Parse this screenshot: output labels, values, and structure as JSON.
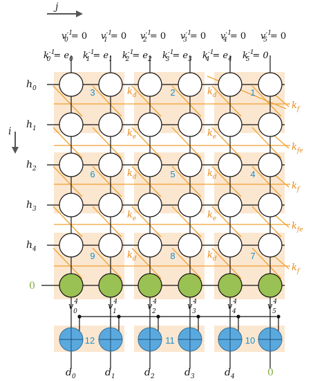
{
  "colors": {
    "background": "#ffffff",
    "block_fill": "#fbe6cf",
    "grid_line": "#111111",
    "diagonal_line": "#f0a030",
    "orange_label": "#e28a1e",
    "cell_number": "#1e8fc8",
    "green_node": "#9ac153",
    "blue_node": "#5aa9de",
    "green_label": "#7fae3e"
  },
  "axes": {
    "j": "j",
    "i": "i"
  },
  "top_labels": {
    "v": [
      {
        "base": "v",
        "sup": "-1",
        "sub": "0",
        "rhs": "= 0"
      },
      {
        "base": "v",
        "sup": "-1",
        "sub": "1",
        "rhs": "= 0"
      },
      {
        "base": "v",
        "sup": "-1",
        "sub": "2",
        "rhs": "= 0"
      },
      {
        "base": "v",
        "sup": "-1",
        "sub": "3",
        "rhs": "= 0"
      },
      {
        "base": "v",
        "sup": "-1",
        "sub": "4",
        "rhs": "= 0"
      },
      {
        "base": "v",
        "sup": "-1",
        "sub": "5",
        "rhs": "= 0"
      }
    ],
    "k": [
      {
        "base": "k",
        "sup": "-1",
        "sub": "0",
        "rhs_base": "= e",
        "rhs_sub": "0"
      },
      {
        "base": "k",
        "sup": "-1",
        "sub": "1",
        "rhs_base": "= e",
        "rhs_sub": "1"
      },
      {
        "base": "k",
        "sup": "-1",
        "sub": "2",
        "rhs_base": "= e",
        "rhs_sub": "2"
      },
      {
        "base": "k",
        "sup": "-1",
        "sub": "3",
        "rhs_base": "= e",
        "rhs_sub": "3"
      },
      {
        "base": "k",
        "sup": "-1",
        "sub": "4",
        "rhs_base": "= e",
        "rhs_sub": "4"
      },
      {
        "base": "k",
        "sup": "-1",
        "sub": "5",
        "rhs_base": "= 0",
        "rhs_sub": ""
      }
    ]
  },
  "row_labels": [
    {
      "base": "h",
      "sub": "0"
    },
    {
      "base": "h",
      "sub": "1"
    },
    {
      "base": "h",
      "sub": "2"
    },
    {
      "base": "h",
      "sub": "3"
    },
    {
      "base": "h",
      "sub": "4"
    }
  ],
  "green_row_label": "0",
  "cell_numbers": [
    "3",
    "2",
    "1",
    "6",
    "5",
    "4",
    "9",
    "8",
    "7",
    "12",
    "11",
    "10"
  ],
  "inner_labels": [
    {
      "base": "k",
      "sub": "d"
    },
    {
      "base": "k",
      "sub": "d"
    },
    {
      "base": "k",
      "sub": "e"
    },
    {
      "base": "k",
      "sub": "e"
    },
    {
      "base": "k",
      "sub": "d"
    },
    {
      "base": "k",
      "sub": "d"
    },
    {
      "base": "k",
      "sub": "e"
    },
    {
      "base": "k",
      "sub": "e"
    },
    {
      "base": "k",
      "sub": "d"
    },
    {
      "base": "k",
      "sub": "d"
    }
  ],
  "right_labels": [
    {
      "base": "k",
      "sub": "f"
    },
    {
      "base": "k",
      "sub": "fe"
    },
    {
      "base": "k",
      "sub": "f"
    },
    {
      "base": "k",
      "sub": "fe"
    },
    {
      "base": "k",
      "sub": "f"
    }
  ],
  "v_bottom_labels": [
    {
      "base": "v",
      "sup": "4",
      "sub": "0"
    },
    {
      "base": "v",
      "sup": "4",
      "sub": "1"
    },
    {
      "base": "v",
      "sup": "4",
      "sub": "2"
    },
    {
      "base": "v",
      "sup": "4",
      "sub": "3"
    },
    {
      "base": "v",
      "sup": "4",
      "sub": "4"
    },
    {
      "base": "v",
      "sup": "4",
      "sub": "5"
    }
  ],
  "d_labels": [
    {
      "base": "d",
      "sub": "0"
    },
    {
      "base": "d",
      "sub": "1"
    },
    {
      "base": "d",
      "sub": "2"
    },
    {
      "base": "d",
      "sub": "3"
    },
    {
      "base": "d",
      "sub": "4"
    }
  ],
  "last_output_label": "0"
}
